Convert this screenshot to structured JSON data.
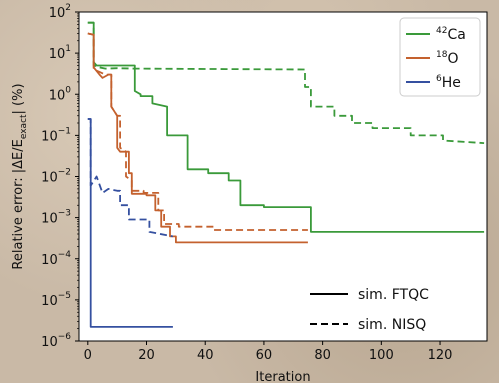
{
  "chart_data": {
    "type": "line",
    "title": "",
    "xlabel": "Iteration",
    "ylabel_parts": {
      "prefix": "Relative error: |ΔE/E",
      "sub": "exact",
      "suffix": "| (%)"
    },
    "xlim": [
      -3,
      136
    ],
    "ylim": [
      1e-06,
      100
    ],
    "yscale": "log",
    "x_ticks": [
      0,
      20,
      40,
      60,
      80,
      100,
      120
    ],
    "y_ticks": [
      {
        "value": 1e-06,
        "base": "10",
        "exp": "−6"
      },
      {
        "value": 1e-05,
        "base": "10",
        "exp": "−5"
      },
      {
        "value": 0.0001,
        "base": "10",
        "exp": "−4"
      },
      {
        "value": 0.001,
        "base": "10",
        "exp": "−3"
      },
      {
        "value": 0.01,
        "base": "10",
        "exp": "−2"
      },
      {
        "value": 0.1,
        "base": "10",
        "exp": "−1"
      },
      {
        "value": 1,
        "base": "10",
        "exp": "0"
      },
      {
        "value": 10,
        "base": "10",
        "exp": "1"
      },
      {
        "value": 100,
        "base": "10",
        "exp": "2"
      }
    ],
    "grid": false,
    "series": [
      {
        "name_sup": "42",
        "name_main": "Ca",
        "variant": "sim. FTQC",
        "color": "#3a9a3a",
        "dash": "solid",
        "x": [
          0,
          2,
          2,
          3,
          4,
          16,
          16,
          18,
          18,
          22,
          22,
          27,
          27,
          34,
          34,
          41,
          41,
          48,
          48,
          52,
          52,
          60,
          60,
          76,
          76,
          135
        ],
        "y": [
          55,
          55,
          6,
          5,
          5,
          5,
          1.2,
          1.0,
          0.9,
          0.9,
          0.6,
          0.5,
          0.1,
          0.1,
          0.015,
          0.015,
          0.012,
          0.012,
          0.008,
          0.008,
          0.002,
          0.002,
          0.0018,
          0.0018,
          0.00045,
          0.00045
        ]
      },
      {
        "name_sup": "42",
        "name_main": "Ca",
        "variant": "sim. NISQ",
        "color": "#3a9a3a",
        "dash": "dashed",
        "x": [
          0,
          2,
          2,
          4,
          6,
          10,
          16,
          74,
          74,
          76,
          76,
          84,
          84,
          90,
          90,
          97,
          97,
          110,
          110,
          121,
          121,
          135
        ],
        "y": [
          55,
          55,
          5,
          4.5,
          4.2,
          4.3,
          4.2,
          4.0,
          1.5,
          1.5,
          0.5,
          0.5,
          0.3,
          0.3,
          0.2,
          0.2,
          0.15,
          0.15,
          0.1,
          0.1,
          0.075,
          0.065
        ]
      },
      {
        "name_sup": "18",
        "name_main": "O",
        "variant": "sim. FTQC",
        "color": "#c4612e",
        "dash": "solid",
        "x": [
          0,
          2,
          2,
          4,
          5,
          7,
          8,
          8,
          10,
          10,
          11,
          12,
          14,
          14,
          15,
          15,
          20,
          20,
          23,
          23,
          25,
          25,
          28,
          28,
          29,
          29,
          30,
          30,
          75
        ],
        "y": [
          30,
          28,
          4.5,
          3,
          2.5,
          3.0,
          3.0,
          0.5,
          0.3,
          0.05,
          0.04,
          0.04,
          0.04,
          0.012,
          0.012,
          0.0038,
          0.0038,
          0.0035,
          0.0035,
          0.0015,
          0.0015,
          0.0006,
          0.0006,
          0.00035,
          0.00035,
          0.00035,
          0.00035,
          0.00025,
          0.00025
        ]
      },
      {
        "name_sup": "18",
        "name_main": "O",
        "variant": "sim. NISQ",
        "color": "#c4612e",
        "dash": "dashed",
        "x": [
          0,
          2,
          2,
          4,
          6,
          8,
          8,
          10,
          11,
          11,
          13,
          13,
          15,
          15,
          19,
          19,
          24,
          24,
          26,
          26,
          31,
          31,
          43,
          43,
          75
        ],
        "y": [
          30,
          28,
          4,
          3.5,
          3.0,
          3.0,
          0.5,
          0.3,
          0.3,
          0.05,
          0.04,
          0.01,
          0.008,
          0.0045,
          0.0045,
          0.004,
          0.004,
          0.0015,
          0.0015,
          0.0007,
          0.0007,
          0.0006,
          0.0006,
          0.0005,
          0.0005
        ]
      },
      {
        "name_sup": "6",
        "name_main": "He",
        "variant": "sim. FTQC",
        "color": "#3550a0",
        "dash": "solid",
        "x": [
          0,
          1,
          1,
          29
        ],
        "y": [
          0.25,
          0.25,
          2.2e-06,
          2.2e-06
        ]
      },
      {
        "name_sup": "6",
        "name_main": "He",
        "variant": "sim. NISQ",
        "color": "#3550a0",
        "dash": "dashed",
        "x": [
          0,
          1,
          1,
          3,
          5,
          7,
          10,
          11,
          11,
          14,
          14,
          21,
          21,
          29
        ],
        "y": [
          0.25,
          0.25,
          0.006,
          0.01,
          0.004,
          0.005,
          0.0045,
          0.0045,
          0.002,
          0.002,
          0.0009,
          0.0009,
          0.00045,
          0.00035
        ]
      }
    ],
    "legend_species": [
      {
        "sup": "42",
        "main": "Ca",
        "color": "#3a9a3a"
      },
      {
        "sup": "18",
        "main": "O",
        "color": "#c4612e"
      },
      {
        "sup": "6",
        "main": "He",
        "color": "#3550a0"
      }
    ],
    "legend_styles": [
      {
        "label": "sim. FTQC",
        "dash": "solid"
      },
      {
        "label": "sim. NISQ",
        "dash": "dashed"
      }
    ],
    "legend_placement": "top-right (species), bottom-right (styles)"
  }
}
